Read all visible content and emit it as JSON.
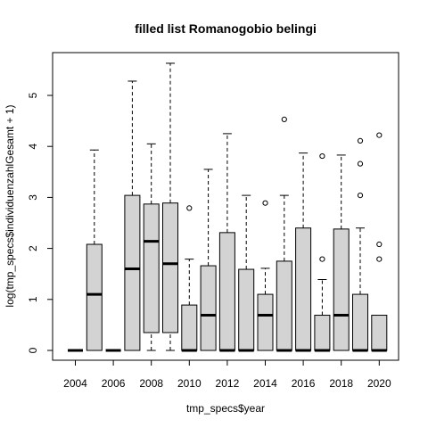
{
  "chart_data": {
    "type": "boxplot",
    "title": "filled list Romanogobio belingi",
    "xlabel": "tmp_specs$year",
    "ylabel": "log(tmp_specs$individuenzahlGesamt + 1)",
    "x_tick_labels": [
      "2004",
      "2006",
      "2008",
      "2010",
      "2012",
      "2014",
      "2016",
      "2018",
      "2020"
    ],
    "y_tick_labels": [
      "0",
      "1",
      "2",
      "3",
      "4",
      "5"
    ],
    "ylim": [
      -0.15,
      5.85
    ],
    "grid": false,
    "box_fill": "#d3d3d3",
    "boxes": [
      {
        "year": 2004,
        "min": 0,
        "q1": 0,
        "median": 0,
        "q3": 0,
        "max": 0,
        "outliers": []
      },
      {
        "year": 2005,
        "min": 0,
        "q1": 0,
        "median": 1.1,
        "q3": 2.08,
        "max": 3.93,
        "outliers": []
      },
      {
        "year": 2006,
        "min": 0,
        "q1": 0,
        "median": 0,
        "q3": 0,
        "max": 0,
        "outliers": []
      },
      {
        "year": 2007,
        "min": 0,
        "q1": 0,
        "median": 1.6,
        "q3": 3.04,
        "max": 5.28,
        "outliers": []
      },
      {
        "year": 2008,
        "min": 0,
        "q1": 0.35,
        "median": 2.14,
        "q3": 2.87,
        "max": 4.05,
        "outliers": []
      },
      {
        "year": 2009,
        "min": 0,
        "q1": 0.35,
        "median": 1.7,
        "q3": 2.89,
        "max": 5.63,
        "outliers": []
      },
      {
        "year": 2010,
        "min": 0,
        "q1": 0,
        "median": 0,
        "q3": 0.89,
        "max": 1.79,
        "outliers": [
          2.79
        ]
      },
      {
        "year": 2011,
        "min": 0,
        "q1": 0,
        "median": 0.69,
        "q3": 1.66,
        "max": 3.55,
        "outliers": []
      },
      {
        "year": 2012,
        "min": 0,
        "q1": 0,
        "median": 0,
        "q3": 2.31,
        "max": 4.25,
        "outliers": []
      },
      {
        "year": 2013,
        "min": 0,
        "q1": 0,
        "median": 0,
        "q3": 1.59,
        "max": 3.04,
        "outliers": []
      },
      {
        "year": 2014,
        "min": 0,
        "q1": 0,
        "median": 0.69,
        "q3": 1.1,
        "max": 1.61,
        "outliers": [
          2.89
        ]
      },
      {
        "year": 2015,
        "min": 0,
        "q1": 0,
        "median": 0,
        "q3": 1.75,
        "max": 3.04,
        "outliers": [
          4.53
        ]
      },
      {
        "year": 2016,
        "min": 0,
        "q1": 0,
        "median": 0,
        "q3": 2.4,
        "max": 3.87,
        "outliers": []
      },
      {
        "year": 2017,
        "min": 0,
        "q1": 0,
        "median": 0,
        "q3": 0.69,
        "max": 1.39,
        "outliers": [
          1.79,
          3.81
        ]
      },
      {
        "year": 2018,
        "min": 0,
        "q1": 0,
        "median": 0.69,
        "q3": 2.38,
        "max": 3.83,
        "outliers": []
      },
      {
        "year": 2019,
        "min": 0,
        "q1": 0,
        "median": 0,
        "q3": 1.1,
        "max": 2.4,
        "outliers": [
          3.04,
          3.66,
          4.11
        ]
      },
      {
        "year": 2020,
        "min": 0,
        "q1": 0,
        "median": 0,
        "q3": 0.69,
        "max": 0.69,
        "outliers": [
          1.79,
          2.08,
          4.22
        ]
      }
    ]
  }
}
